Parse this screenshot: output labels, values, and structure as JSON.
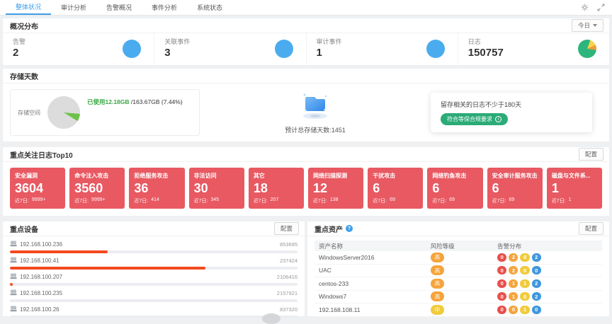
{
  "colors": {
    "accent_blue": "#3d9fea",
    "stat_circle_blue": "#4aacee",
    "log_card_red": "#e85962",
    "compliance_green": "#2bab77",
    "device_bar_red": "#f4491f",
    "alert_badge_colors": [
      "#e8504c",
      "#f5a43d",
      "#f0cb3c",
      "#3f97dd"
    ]
  },
  "tabs": {
    "items": [
      {
        "label": "整体状况",
        "active": true
      },
      {
        "label": "审计分析",
        "active": false
      },
      {
        "label": "告警概况",
        "active": false
      },
      {
        "label": "事件分析",
        "active": false
      },
      {
        "label": "系统状态",
        "active": false
      }
    ],
    "icons": [
      "gear-icon",
      "expand-icon"
    ]
  },
  "overview": {
    "title": "概况分布",
    "period": "今日",
    "stats": [
      {
        "label": "告警",
        "value": "2",
        "icon": "blue-donut"
      },
      {
        "label": "关联事件",
        "value": "3",
        "icon": "blue-donut"
      },
      {
        "label": "审计事件",
        "value": "1",
        "icon": "blue-donut"
      },
      {
        "label": "日志",
        "value": "150757",
        "icon": "log-pie"
      }
    ]
  },
  "storage": {
    "title": "存储天数",
    "space_label": "存储空间",
    "used_label": "已使用12.18GB",
    "total_label": "/163.67GB (7.44%)",
    "used_percent": 7.44,
    "days_text": "预计总存储天数:1451",
    "note": "留存相关的日志不少于180天",
    "badge": "符合等保合规要求"
  },
  "top_logs": {
    "title": "重点关注日志Top10",
    "config_label": "配置",
    "recent_label": "近7日:",
    "cards": [
      {
        "title": "安全漏洞",
        "value": "3604",
        "recent": "9999+"
      },
      {
        "title": "命令注入攻击",
        "value": "3560",
        "recent": "9999+"
      },
      {
        "title": "拒绝服务攻击",
        "value": "36",
        "recent": "414"
      },
      {
        "title": "非法访问",
        "value": "30",
        "recent": "345"
      },
      {
        "title": "其它",
        "value": "18",
        "recent": "207"
      },
      {
        "title": "网络扫描探测",
        "value": "12",
        "recent": "138"
      },
      {
        "title": "干扰攻击",
        "value": "6",
        "recent": "69"
      },
      {
        "title": "网络钓鱼攻击",
        "value": "6",
        "recent": "69"
      },
      {
        "title": "安全审计服务攻击",
        "value": "6",
        "recent": "69"
      },
      {
        "title": "磁盘与文件系...",
        "value": "1",
        "recent": "1"
      }
    ]
  },
  "devices": {
    "title": "重点设备",
    "config_label": "配置",
    "rows": [
      {
        "ip": "192.168.100.236",
        "value": "853695",
        "bar_percent": 34
      },
      {
        "ip": "192.168.100.41",
        "value": "237424",
        "bar_percent": 68
      },
      {
        "ip": "192.168.100.207",
        "value": "2106416",
        "bar_percent": 1
      },
      {
        "ip": "192.168.100.235",
        "value": "2157921",
        "bar_percent": 0
      },
      {
        "ip": "192.168.100.26",
        "value": "837320",
        "bar_percent": 0
      }
    ]
  },
  "assets": {
    "title": "重点资产",
    "config_label": "配置",
    "columns": [
      "资产名称",
      "风险等级",
      "告警分布"
    ],
    "rows": [
      {
        "name": "WindowsServer2016",
        "risk": "高",
        "risk_color": "#f5a43d",
        "alerts": [
          0,
          2,
          0,
          2
        ]
      },
      {
        "name": "UAC",
        "risk": "高",
        "risk_color": "#f5a43d",
        "alerts": [
          0,
          2,
          0,
          0
        ]
      },
      {
        "name": "centos-233",
        "risk": "高",
        "risk_color": "#f5a43d",
        "alerts": [
          0,
          1,
          1,
          2
        ]
      },
      {
        "name": "Windows7",
        "risk": "高",
        "risk_color": "#f5a43d",
        "alerts": [
          0,
          1,
          0,
          2
        ]
      },
      {
        "name": "192.168.108.11",
        "risk": "中",
        "risk_color": "#f0cb3c",
        "alerts": [
          0,
          0,
          1,
          0
        ]
      }
    ]
  }
}
